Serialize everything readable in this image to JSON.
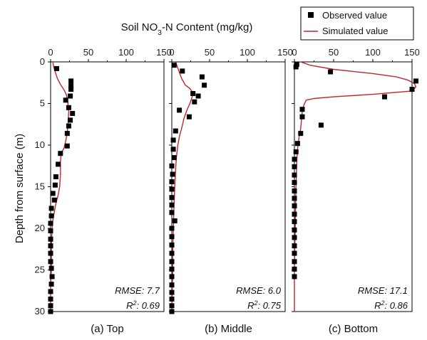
{
  "chart_data": {
    "type": "scatter",
    "title": {
      "prefix": "Soil NO",
      "sub": "3",
      "suffix": "-N Content (mg/kg)"
    },
    "ylabel": "Depth from surface (m)",
    "xlim": [
      0,
      150
    ],
    "ylim": [
      0,
      30
    ],
    "x_ticks": [
      0,
      50,
      100,
      150
    ],
    "y_ticks": [
      0,
      5,
      10,
      15,
      20,
      25,
      30
    ],
    "legend": {
      "position": "top-right",
      "entries": [
        {
          "label": "Observed value",
          "marker": "square",
          "color": "#000000"
        },
        {
          "label": "Simulated value",
          "marker": "line",
          "color": "#c0272d"
        }
      ]
    },
    "colors": {
      "observed": "#000000",
      "simulated": "#c0272d"
    },
    "panels": [
      {
        "caption": "(a) Top",
        "rmse_label": "RMSE: 7.7",
        "r2_prefix": "R",
        "r2_sup": "2",
        "r2_suffix": ": 0.69",
        "observed": [
          [
            8,
            0.8
          ],
          [
            27,
            2.3
          ],
          [
            27,
            2.9
          ],
          [
            27,
            3.3
          ],
          [
            26,
            4.1
          ],
          [
            20,
            4.6
          ],
          [
            24,
            5.5
          ],
          [
            29,
            6.2
          ],
          [
            26,
            7.0
          ],
          [
            24,
            7.7
          ],
          [
            22,
            8.6
          ],
          [
            22,
            10.1
          ],
          [
            13,
            11.0
          ],
          [
            10,
            12.3
          ],
          [
            7,
            13.8
          ],
          [
            6,
            14.8
          ],
          [
            3,
            15.8
          ],
          [
            5,
            16.6
          ],
          [
            1,
            17.6
          ],
          [
            1,
            18.5
          ],
          [
            0,
            19.4
          ],
          [
            0,
            20.3
          ],
          [
            0,
            21.3
          ],
          [
            0,
            22.1
          ],
          [
            0,
            23.0
          ],
          [
            0,
            24.0
          ],
          [
            1,
            24.8
          ],
          [
            2,
            25.8
          ],
          [
            1,
            26.7
          ],
          [
            0,
            27.6
          ],
          [
            0,
            28.5
          ],
          [
            0,
            29.3
          ],
          [
            0,
            30.0
          ]
        ],
        "simulated": [
          [
            3,
            0
          ],
          [
            4,
            0.6
          ],
          [
            6,
            1.2
          ],
          [
            9,
            2.0
          ],
          [
            13,
            2.7
          ],
          [
            18,
            3.4
          ],
          [
            21,
            4.0
          ],
          [
            23,
            5.0
          ],
          [
            24,
            6.0
          ],
          [
            23,
            7.5
          ],
          [
            22,
            8.5
          ],
          [
            20,
            9.5
          ],
          [
            18,
            10.3
          ],
          [
            14,
            11.0
          ],
          [
            13,
            12.0
          ],
          [
            13,
            13.5
          ],
          [
            12,
            15.0
          ],
          [
            10,
            16.0
          ],
          [
            7,
            17.0
          ],
          [
            5,
            18.0
          ],
          [
            3,
            19.0
          ],
          [
            2,
            20.0
          ],
          [
            1,
            22.0
          ],
          [
            1,
            25.0
          ],
          [
            0,
            27.0
          ],
          [
            0,
            30.0
          ]
        ]
      },
      {
        "caption": "(b) Middle",
        "rmse_label": "RMSE: 6.0",
        "r2_prefix": "R",
        "r2_sup": "2",
        "r2_suffix": ": 0.75",
        "observed": [
          [
            3,
            0.4
          ],
          [
            14,
            1.1
          ],
          [
            40,
            1.8
          ],
          [
            43,
            2.8
          ],
          [
            28,
            3.8
          ],
          [
            35,
            4.1
          ],
          [
            30,
            4.8
          ],
          [
            10,
            5.8
          ],
          [
            23,
            6.6
          ],
          [
            5,
            8.3
          ],
          [
            2,
            9.4
          ],
          [
            2,
            10.5
          ],
          [
            3,
            11.5
          ],
          [
            0,
            12.5
          ],
          [
            1,
            13.5
          ],
          [
            0,
            14.4
          ],
          [
            0,
            15.3
          ],
          [
            0,
            16.3
          ],
          [
            0,
            17.2
          ],
          [
            0,
            18.1
          ],
          [
            4,
            19.1
          ],
          [
            0,
            20.0
          ],
          [
            0,
            21.0
          ],
          [
            0,
            22.0
          ],
          [
            0,
            23.0
          ],
          [
            0,
            24.0
          ],
          [
            0,
            24.9
          ],
          [
            0,
            25.8
          ],
          [
            0,
            26.8
          ],
          [
            0,
            27.7
          ],
          [
            0,
            28.5
          ],
          [
            0,
            29.3
          ],
          [
            0,
            30.0
          ]
        ],
        "simulated": [
          [
            5,
            0
          ],
          [
            9,
            1.0
          ],
          [
            13,
            2.0
          ],
          [
            18,
            2.8
          ],
          [
            24,
            3.2
          ],
          [
            27,
            3.6
          ],
          [
            27,
            4.2
          ],
          [
            24,
            5.0
          ],
          [
            20,
            5.8
          ],
          [
            16,
            6.8
          ],
          [
            13,
            8.0
          ],
          [
            10,
            9.0
          ],
          [
            8,
            10.0
          ],
          [
            6,
            11.5
          ],
          [
            5,
            13.0
          ],
          [
            4,
            15.0
          ],
          [
            3,
            17.0
          ],
          [
            2,
            20.0
          ],
          [
            1,
            23.0
          ],
          [
            1,
            26.0
          ],
          [
            0,
            30.0
          ]
        ]
      },
      {
        "caption": "(c) Bottom",
        "rmse_label": "RMSE: 17.1",
        "r2_prefix": "R",
        "r2_sup": "2",
        "r2_suffix": ": 0.86",
        "observed": [
          [
            3,
            0.3
          ],
          [
            2,
            0.6
          ],
          [
            46,
            1.2
          ],
          [
            155,
            2.3
          ],
          [
            150,
            3.3
          ],
          [
            115,
            4.2
          ],
          [
            10,
            5.7
          ],
          [
            10,
            6.6
          ],
          [
            34,
            7.6
          ],
          [
            8,
            8.6
          ],
          [
            4,
            9.8
          ],
          [
            2,
            10.8
          ],
          [
            0,
            11.7
          ],
          [
            0,
            12.6
          ],
          [
            0,
            13.6
          ],
          [
            0,
            14.5
          ],
          [
            0,
            15.5
          ],
          [
            0,
            16.4
          ],
          [
            0,
            17.3
          ],
          [
            0,
            18.3
          ],
          [
            0,
            19.2
          ],
          [
            0,
            20.2
          ],
          [
            0,
            21.1
          ],
          [
            0,
            22.1
          ],
          [
            0,
            23.0
          ],
          [
            0,
            24.0
          ],
          [
            0,
            24.9
          ],
          [
            0,
            25.8
          ]
        ],
        "simulated": [
          [
            8,
            0
          ],
          [
            20,
            0.4
          ],
          [
            50,
            0.9
          ],
          [
            100,
            1.4
          ],
          [
            130,
            1.8
          ],
          [
            145,
            2.2
          ],
          [
            153,
            2.6
          ],
          [
            155,
            3.0
          ],
          [
            150,
            3.5
          ],
          [
            100,
            3.9
          ],
          [
            50,
            4.2
          ],
          [
            25,
            4.4
          ],
          [
            15,
            4.6
          ],
          [
            12,
            5.2
          ],
          [
            10,
            6.0
          ],
          [
            9,
            7.0
          ],
          [
            8,
            8.0
          ],
          [
            6,
            9.0
          ],
          [
            4,
            10.5
          ],
          [
            3,
            12.0
          ],
          [
            2,
            15.0
          ],
          [
            1,
            20.0
          ],
          [
            0,
            25.0
          ],
          [
            0,
            30.0
          ]
        ]
      }
    ]
  }
}
